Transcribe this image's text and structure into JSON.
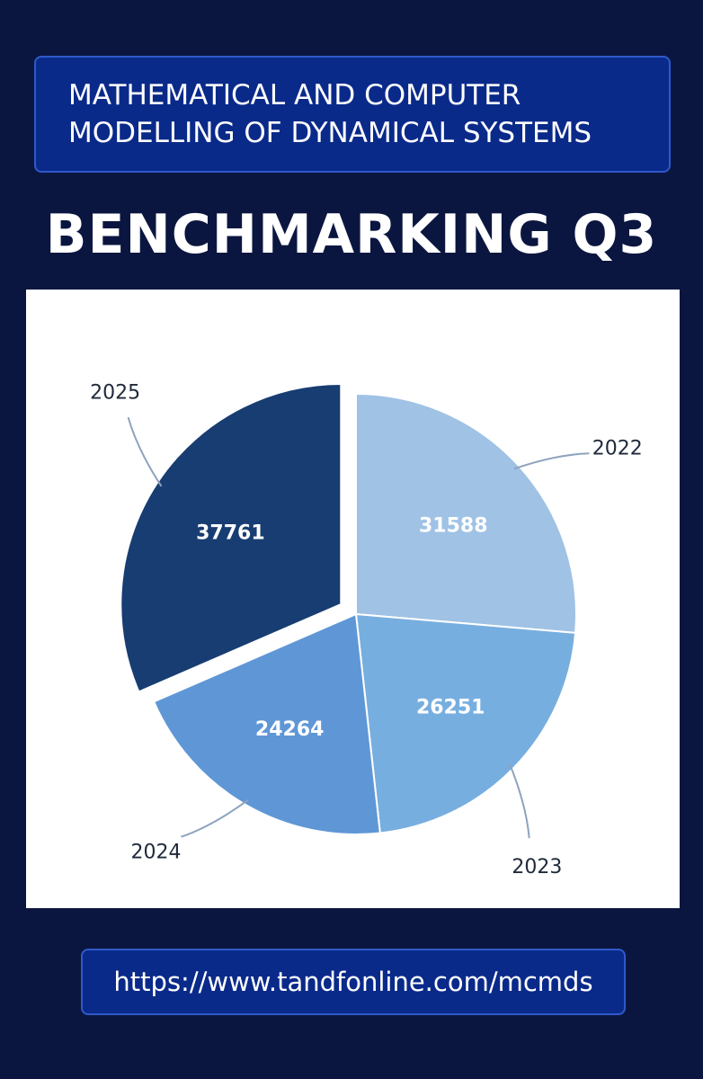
{
  "header": {
    "journal_line1": "MATHEMATICAL AND COMPUTER",
    "journal_line2": "MODELLING OF DYNAMICAL SYSTEMS",
    "title": "BENCHMARKING Q3"
  },
  "footer": {
    "url": "https://www.tandfonline.com/mcmds"
  },
  "chart_data": {
    "type": "pie",
    "title": "",
    "categories": [
      "2022",
      "2023",
      "2024",
      "2025"
    ],
    "values": [
      31588,
      26251,
      24264,
      37761
    ],
    "colors": [
      "#9fc2e5",
      "#77aee0",
      "#5f97d6",
      "#173d72"
    ],
    "exploded": "2025",
    "start": "12 o'clock",
    "direction": "clockwise",
    "labels": "outside with leader lines",
    "value_labels": "inside"
  }
}
